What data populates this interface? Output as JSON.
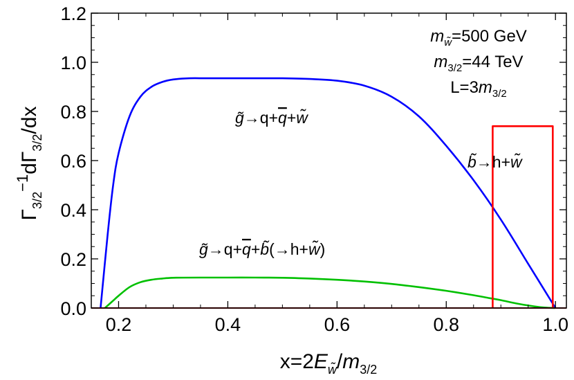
{
  "chart_data": {
    "type": "line",
    "xlabel": "x=2Ẽw/m3/2",
    "ylabel": "Γ3/2⁻¹ dΓ3/2/dx",
    "xlim": [
      0.15,
      1.02
    ],
    "ylim": [
      0.0,
      1.2
    ],
    "x_ticks": [
      "0.2",
      "0.4",
      "0.6",
      "0.8",
      "1.0"
    ],
    "y_ticks": [
      "0.0",
      "0.2",
      "0.4",
      "0.6",
      "0.8",
      "1.0",
      "1.2"
    ],
    "grid": false,
    "params": [
      "m̃w=500 GeV",
      "m3/2=44 TeV",
      "L=3m3/2"
    ],
    "annotations": [
      "g̃→q+q̄+w̃",
      "b̃→h+w̃",
      "g̃→q+q̄+b̃(→h+w̃)"
    ],
    "series": [
      {
        "color": "#0000ff",
        "x": [
          0.167,
          0.18,
          0.19,
          0.2,
          0.22,
          0.24,
          0.26,
          0.28,
          0.3,
          0.33,
          0.36,
          0.4,
          0.45,
          0.5,
          0.55,
          0.6,
          0.65,
          0.7,
          0.75,
          0.8,
          0.85,
          0.9,
          0.95,
          1.0
        ],
        "y": [
          0.0,
          0.3,
          0.5,
          0.63,
          0.78,
          0.86,
          0.9,
          0.92,
          0.93,
          0.935,
          0.935,
          0.935,
          0.935,
          0.935,
          0.932,
          0.925,
          0.905,
          0.86,
          0.78,
          0.66,
          0.52,
          0.36,
          0.18,
          0.0
        ]
      },
      {
        "color": "#00c000",
        "x": [
          0.175,
          0.19,
          0.2,
          0.22,
          0.24,
          0.26,
          0.28,
          0.3,
          0.35,
          0.4,
          0.45,
          0.5,
          0.55,
          0.6,
          0.65,
          0.7,
          0.75,
          0.8,
          0.85,
          0.88,
          0.9,
          0.93,
          0.96,
          0.98,
          1.0
        ],
        "y": [
          0.0,
          0.03,
          0.05,
          0.085,
          0.105,
          0.115,
          0.12,
          0.123,
          0.124,
          0.124,
          0.124,
          0.123,
          0.12,
          0.115,
          0.108,
          0.098,
          0.085,
          0.07,
          0.052,
          0.04,
          0.032,
          0.018,
          0.007,
          0.002,
          0.0
        ]
      },
      {
        "color": "#ff0000",
        "shape": "box",
        "x": [
          0.885,
          0.885,
          0.995,
          0.995
        ],
        "y": [
          0.0,
          0.74,
          0.74,
          0.0
        ]
      },
      {
        "color": "#a00000",
        "x": [
          0.15,
          1.02
        ],
        "y": [
          0.0,
          0.0
        ]
      }
    ]
  }
}
